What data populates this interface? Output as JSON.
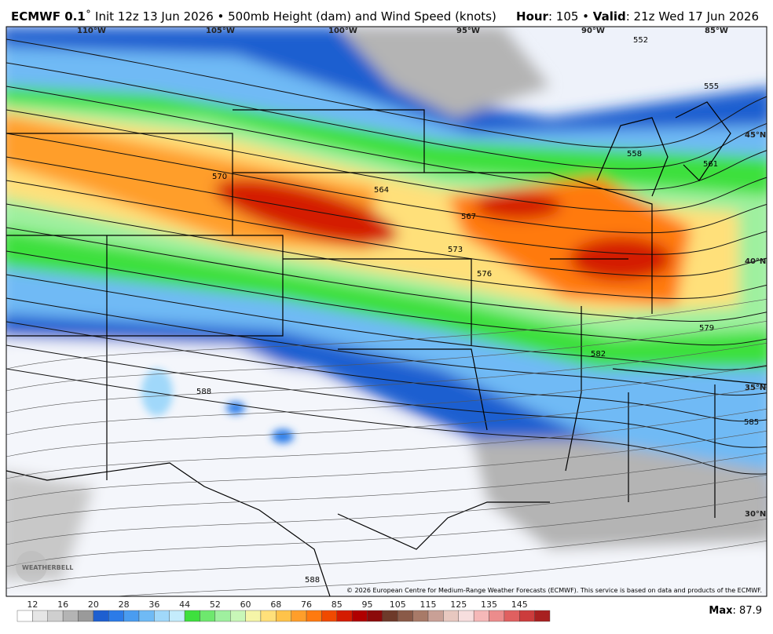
{
  "header": {
    "model": "ECMWF 0.1",
    "title": "˚ Init 12z 13 Jun 2026 • 500mb Height (dam) and Wind Speed (knots)",
    "hour_label": "Hour",
    "hour_text": ": 105 • ",
    "valid_label": "Valid",
    "valid_text": ": 21z Wed 17 Jun 2026"
  },
  "longitudes": [
    "110°W",
    "105°W",
    "100°W",
    "95°W",
    "90°W",
    "85°W"
  ],
  "latitudes": [
    "45°N",
    "40°N",
    "35°N",
    "30°N"
  ],
  "contour_labels": [
    "552",
    "555",
    "558",
    "561",
    "564",
    "567",
    "570",
    "573",
    "576",
    "579",
    "582",
    "585",
    "588",
    "588"
  ],
  "logo": "WEATHERBELL",
  "copyright": "© 2026 European Centre for Medium-Range Weather Forecasts (ECMWF). This service is based on data and products of the ECMWF.",
  "colorbar": {
    "labels": [
      "12",
      "16",
      "20",
      "28",
      "36",
      "44",
      "52",
      "60",
      "68",
      "76",
      "85",
      "95",
      "105",
      "115",
      "125",
      "135",
      "145"
    ],
    "colors": [
      "#ffffff",
      "#e6e6e6",
      "#cfcfcf",
      "#b4b4b4",
      "#9a9a9a",
      "#1e5fd0",
      "#2c7be8",
      "#4a9cf0",
      "#6fbaf5",
      "#a0d8fa",
      "#c4ecfc",
      "#3ee03e",
      "#6ee86e",
      "#9ff09f",
      "#c8f7b8",
      "#f5f5a8",
      "#ffe07a",
      "#ffc34a",
      "#ff9e2a",
      "#ff7a10",
      "#f04a00",
      "#d41c00",
      "#b00000",
      "#8c0a0a",
      "#6e3a2a",
      "#8a5a48",
      "#a87a68",
      "#c9a096",
      "#e8c8c0",
      "#f7dede",
      "#f5b8b8",
      "#ec8c8c",
      "#e06060",
      "#cc3c3c",
      "#a82020"
    ]
  },
  "max_label": "Max",
  "max_value": "87.9"
}
